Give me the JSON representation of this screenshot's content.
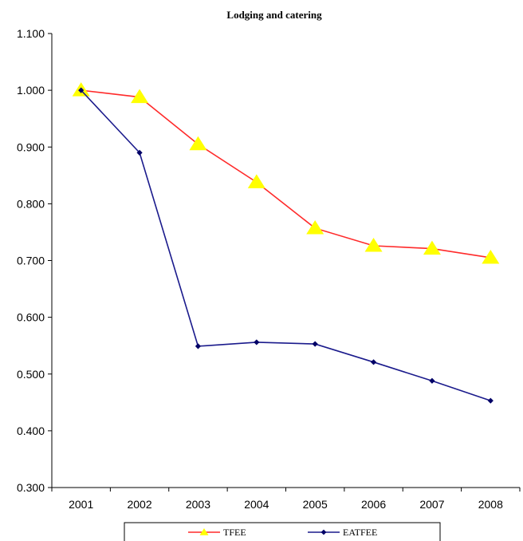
{
  "chart_data": {
    "type": "line",
    "title": "Lodging and catering",
    "xlabel": "",
    "ylabel": "",
    "categories": [
      "2001",
      "2002",
      "2003",
      "2004",
      "2005",
      "2006",
      "2007",
      "2008"
    ],
    "y_ticks": [
      "0.300",
      "0.400",
      "0.500",
      "0.600",
      "0.700",
      "0.800",
      "0.900",
      "1.000",
      "1.100"
    ],
    "ylim": [
      0.3,
      1.1
    ],
    "grid": false,
    "legend_position": "bottom",
    "series": [
      {
        "name": "TFEE",
        "color": "#ff2a2a",
        "marker": "triangle",
        "marker_color": "#ffff00",
        "values": [
          1.0,
          0.988,
          0.905,
          0.838,
          0.757,
          0.726,
          0.721,
          0.705
        ]
      },
      {
        "name": "EATFEE",
        "color": "#1a1a8c",
        "marker": "diamond",
        "marker_color": "#000066",
        "values": [
          1.0,
          0.89,
          0.549,
          0.556,
          0.553,
          0.521,
          0.488,
          0.453
        ]
      }
    ]
  }
}
